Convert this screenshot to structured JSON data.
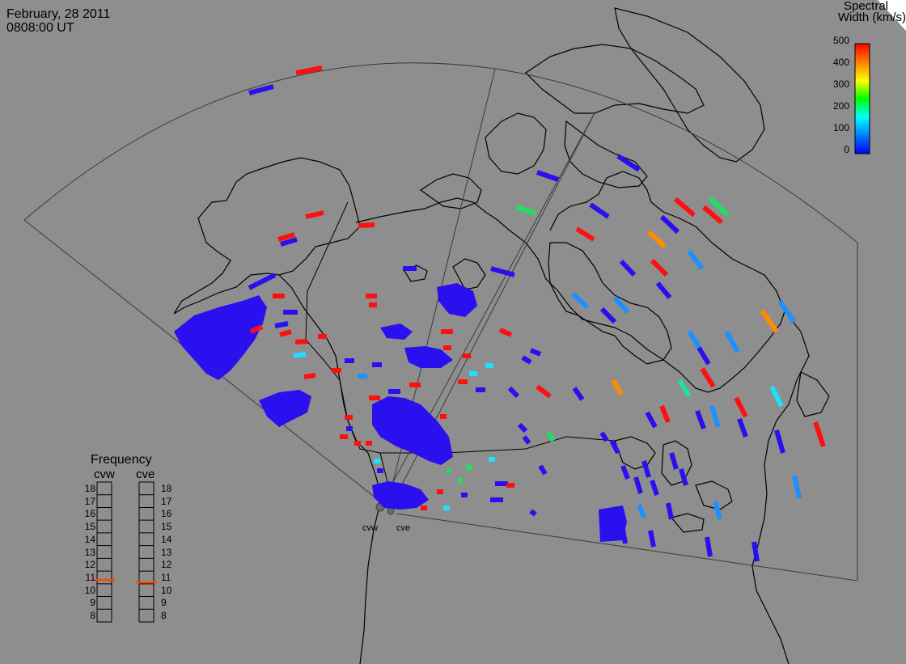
{
  "header": {
    "date": "February, 28 2011",
    "time": "0808:00 UT"
  },
  "colorbar": {
    "title_line1": "Spectral",
    "title_line2": "Width (km/s)",
    "ticks": [
      "500",
      "400",
      "300",
      "200",
      "100",
      "0"
    ],
    "min": 0,
    "max": 500,
    "colors": [
      "#0000ff",
      "#0080ff",
      "#00ffff",
      "#00ff00",
      "#ffff00",
      "#ff8000",
      "#ff0000"
    ]
  },
  "frequency_legend": {
    "title": "Frequency",
    "radars": [
      "cvw",
      "cve"
    ],
    "levels": [
      "18",
      "17",
      "16",
      "15",
      "14",
      "13",
      "12",
      "11",
      "10",
      "9",
      "8"
    ],
    "min_mhz": 8,
    "max_mhz": 18,
    "current_mhz": {
      "cvw": 10.8,
      "cve": 10.6
    },
    "marker_color": "#ff4500"
  },
  "radars": [
    {
      "name": "cvw"
    },
    {
      "name": "cve"
    }
  ],
  "colors": {
    "background": "#8e8e8e",
    "low": "#2a10ee",
    "red": "#ff1010",
    "cyan": "#20e0ff",
    "green": "#20e060",
    "orange": "#ff8c00",
    "sky": "#1e90ff",
    "outline": "#000000"
  }
}
